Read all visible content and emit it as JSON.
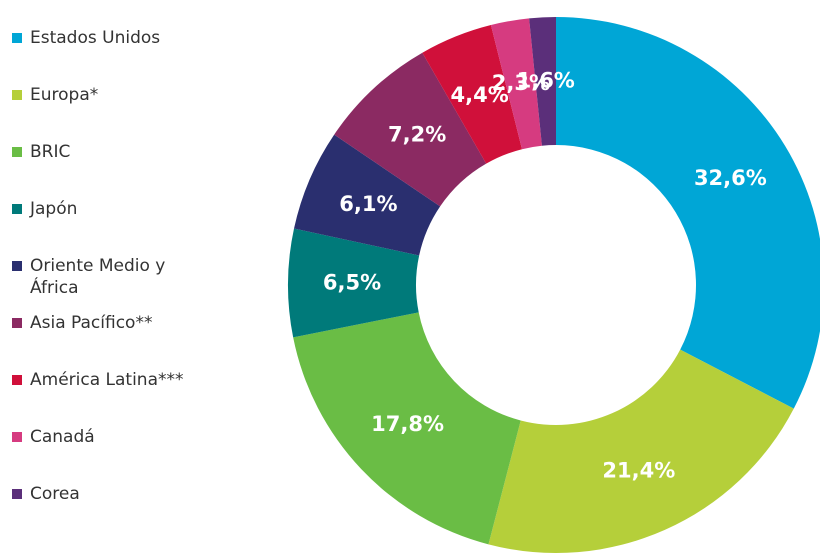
{
  "chart_data": {
    "type": "pie",
    "categories": [
      "Estados Unidos",
      "Europa*",
      "BRIC",
      "Japón",
      "Oriente Medio y África",
      "Asia Pacífico**",
      "América Latina***",
      "Canadá",
      "Corea"
    ],
    "values": [
      32.6,
      21.4,
      17.8,
      6.5,
      6.1,
      7.2,
      4.4,
      2.3,
      1.6
    ],
    "value_labels": [
      "32,6%",
      "21,4%",
      "17,8%",
      "6,5%",
      "6,1%",
      "7,2%",
      "4,4%",
      "2,3%",
      "1,6%"
    ],
    "colors": [
      "#00a6d6",
      "#b5cf3a",
      "#6abd45",
      "#007a7a",
      "#2a2f6f",
      "#8b2a62",
      "#d0103a",
      "#d63b80",
      "#5b2f7a"
    ],
    "donut": true,
    "legend": "left"
  }
}
